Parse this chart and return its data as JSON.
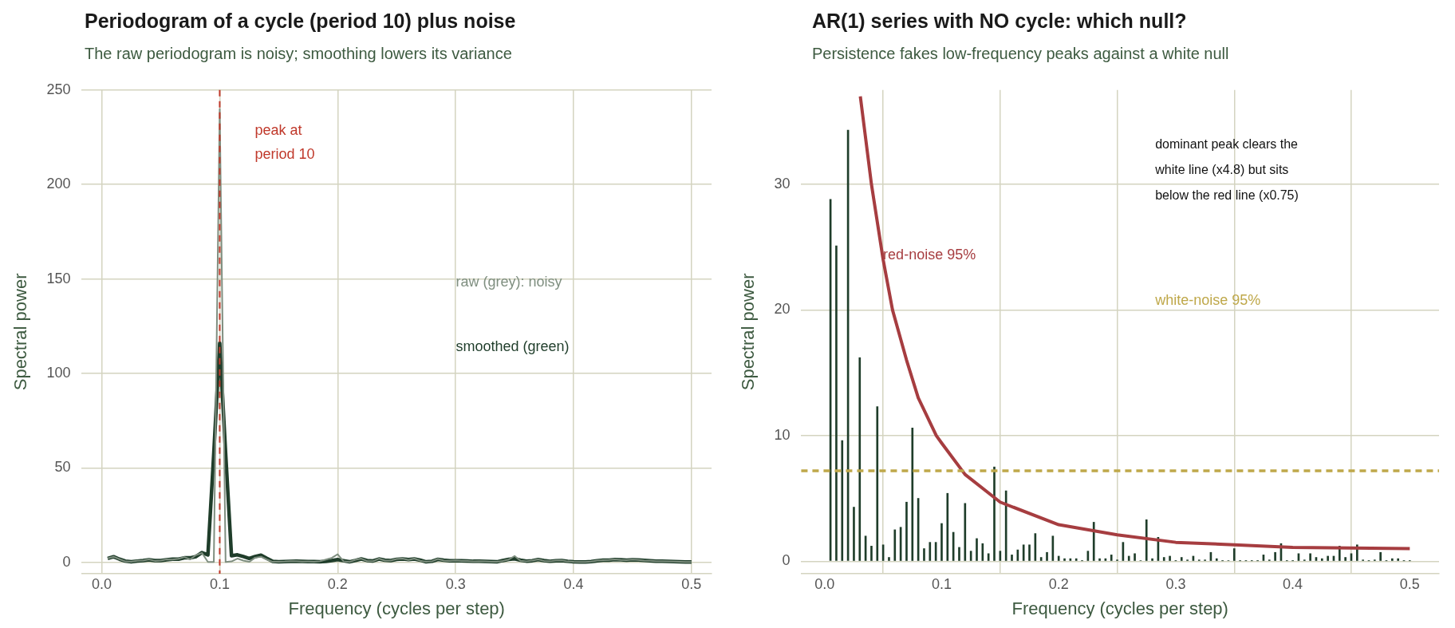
{
  "chart_data": [
    {
      "type": "line",
      "title": "Periodogram of a cycle (period 10) plus noise",
      "subtitle": "The raw periodogram is noisy; smoothing lowers its variance",
      "xlabel": "Frequency (cycles per step)",
      "ylabel": "Spectral power",
      "x": [
        0.005,
        0.01,
        0.015,
        0.02,
        0.025,
        0.03,
        0.035,
        0.04,
        0.045,
        0.05,
        0.055,
        0.06,
        0.065,
        0.07,
        0.075,
        0.08,
        0.085,
        0.09,
        0.095,
        0.1,
        0.105,
        0.11,
        0.115,
        0.12,
        0.125,
        0.13,
        0.135,
        0.14,
        0.145,
        0.15,
        0.155,
        0.16,
        0.165,
        0.17,
        0.175,
        0.18,
        0.185,
        0.19,
        0.195,
        0.2,
        0.205,
        0.21,
        0.215,
        0.22,
        0.225,
        0.23,
        0.235,
        0.24,
        0.245,
        0.25,
        0.255,
        0.26,
        0.265,
        0.27,
        0.275,
        0.28,
        0.285,
        0.29,
        0.295,
        0.3,
        0.305,
        0.31,
        0.315,
        0.32,
        0.325,
        0.33,
        0.335,
        0.34,
        0.345,
        0.35,
        0.355,
        0.36,
        0.365,
        0.37,
        0.375,
        0.38,
        0.385,
        0.39,
        0.395,
        0.4,
        0.405,
        0.41,
        0.415,
        0.42,
        0.425,
        0.43,
        0.435,
        0.44,
        0.445,
        0.45,
        0.455,
        0.46,
        0.465,
        0.47,
        0.475,
        0.48,
        0.485,
        0.49,
        0.495,
        0.5
      ],
      "series": [
        {
          "color": "#7f8f80",
          "values": [
            2.1,
            3.0,
            1.7,
            0.5,
            0.3,
            0.9,
            1.0,
            1.6,
            0.8,
            1.0,
            1.6,
            1.5,
            1.9,
            2.8,
            1.6,
            3.9,
            5.0,
            0.2,
            0.2,
            240,
            0.2,
            0.5,
            2.0,
            1.0,
            0.3,
            2.5,
            3.0,
            1.5,
            0.3,
            0.3,
            0.4,
            0.6,
            0.6,
            0.4,
            0.4,
            0.3,
            0.6,
            1.5,
            2.4,
            4.3,
            0.6,
            0.2,
            1.4,
            2.0,
            0.7,
            0.6,
            2.0,
            1.0,
            1.0,
            1.8,
            2.0,
            1.3,
            2.0,
            0.9,
            0.3,
            0.6,
            1.8,
            1.0,
            0.8,
            1.0,
            0.8,
            0.8,
            0.5,
            0.6,
            0.5,
            0.3,
            0.3,
            0.8,
            1.5,
            3.4,
            0.9,
            0.6,
            1.0,
            1.6,
            0.8,
            0.6,
            1.0,
            1.1,
            0.5,
            0.3,
            0.2,
            0.2,
            0.4,
            1.0,
            1.2,
            1.3,
            1.6,
            1.3,
            1.2,
            1.5,
            1.3,
            1.0,
            0.9,
            0.7,
            0.6,
            0.5,
            0.4,
            0.3,
            0.2,
            0.2
          ]
        },
        {
          "color": "#1f3d2a",
          "values": [
            2.1,
            3.0,
            1.7,
            0.7,
            0.3,
            0.7,
            1.0,
            1.4,
            1.0,
            1.0,
            1.4,
            1.7,
            1.7,
            2.4,
            2.4,
            3.1,
            5.2,
            4.0,
            58,
            116,
            58,
            3.5,
            4.0,
            3.1,
            2.1,
            3.1,
            3.8,
            2.1,
            0.5,
            0.3,
            0.4,
            0.5,
            0.6,
            0.5,
            0.4,
            0.4,
            0.3,
            0.5,
            1.0,
            1.5,
            0.9,
            0.3,
            1.0,
            1.8,
            1.0,
            0.8,
            1.8,
            1.2,
            1.0,
            1.6,
            1.8,
            1.5,
            1.8,
            1.2,
            0.3,
            0.6,
            1.6,
            1.2,
            0.9,
            0.9,
            0.9,
            0.8,
            0.6,
            0.6,
            0.5,
            0.4,
            0.3,
            1.0,
            1.6,
            1.9,
            1.2,
            0.7,
            0.9,
            1.5,
            1.0,
            0.6,
            0.9,
            1.0,
            0.6,
            0.3,
            0.2,
            0.2,
            0.4,
            0.9,
            1.2,
            1.2,
            1.5,
            1.4,
            1.2,
            1.4,
            1.3,
            1.1,
            0.9,
            0.7,
            0.6,
            0.5,
            0.4,
            0.3,
            0.2,
            0.2
          ]
        }
      ],
      "xlim": [
        -0.017,
        0.517
      ],
      "xticks": [
        {
          "value": 0,
          "label": "0.0"
        },
        0.1,
        0.2,
        0.3,
        0.4,
        0.5
      ],
      "ylim": [
        -6,
        250
      ],
      "yticks": [
        0,
        50,
        100,
        150,
        200,
        250
      ],
      "grid": true,
      "ref_lines": [
        {
          "axis": "x",
          "value": 0.1,
          "label": "peak at\nperiod 10",
          "color": "#c0392b",
          "line_style": "dashed"
        }
      ],
      "annotations": [
        "raw (grey): noisy",
        "smoothed (green)"
      ]
    },
    {
      "type": "bar",
      "title": "AR(1) series with NO cycle: which null?",
      "subtitle": "Persistence fakes low-frequency peaks against a white null",
      "xlabel": "Frequency (cycles per step)",
      "ylabel": "Spectral power",
      "series": [
        {
          "type": "bar",
          "color": "#1f3d2a",
          "x": [
            0.005,
            0.01,
            0.015,
            0.02,
            0.025,
            0.03,
            0.035,
            0.04,
            0.045,
            0.05,
            0.055,
            0.06,
            0.065,
            0.07,
            0.075,
            0.08,
            0.085,
            0.09,
            0.095,
            0.1,
            0.105,
            0.11,
            0.115,
            0.12,
            0.125,
            0.13,
            0.135,
            0.14,
            0.145,
            0.15,
            0.155,
            0.16,
            0.165,
            0.17,
            0.175,
            0.18,
            0.185,
            0.19,
            0.195,
            0.2,
            0.205,
            0.21,
            0.215,
            0.22,
            0.225,
            0.23,
            0.235,
            0.24,
            0.245,
            0.25,
            0.255,
            0.26,
            0.265,
            0.27,
            0.275,
            0.28,
            0.285,
            0.29,
            0.295,
            0.3,
            0.305,
            0.31,
            0.315,
            0.32,
            0.325,
            0.33,
            0.335,
            0.34,
            0.345,
            0.35,
            0.355,
            0.36,
            0.365,
            0.37,
            0.375,
            0.38,
            0.385,
            0.39,
            0.395,
            0.4,
            0.405,
            0.41,
            0.415,
            0.42,
            0.425,
            0.43,
            0.435,
            0.44,
            0.445,
            0.45,
            0.455,
            0.46,
            0.465,
            0.47,
            0.475,
            0.48,
            0.485,
            0.49,
            0.495,
            0.5
          ],
          "values": [
            28.8,
            25.1,
            9.6,
            34.3,
            4.3,
            16.2,
            2.0,
            1.2,
            12.3,
            1.3,
            0.3,
            2.5,
            2.7,
            4.7,
            10.6,
            5.0,
            1.0,
            1.5,
            1.5,
            3.0,
            5.4,
            2.3,
            1.1,
            4.6,
            0.8,
            1.8,
            1.4,
            0.6,
            7.5,
            0.8,
            5.6,
            0.5,
            0.9,
            1.3,
            1.3,
            2.2,
            0.3,
            0.7,
            2.0,
            0.4,
            0.2,
            0.2,
            0.2,
            0.03,
            0.8,
            3.1,
            0.2,
            0.2,
            0.5,
            0.1,
            1.5,
            0.4,
            0.6,
            0.05,
            3.3,
            0.2,
            1.9,
            0.3,
            0.4,
            0.03,
            0.3,
            0.1,
            0.4,
            0.1,
            0.1,
            0.7,
            0.2,
            0.03,
            0.05,
            1.0,
            0.03,
            0.03,
            0.03,
            0.03,
            0.5,
            0.1,
            0.7,
            1.4,
            0.03,
            0.03,
            0.6,
            0.1,
            0.6,
            0.3,
            0.2,
            0.4,
            0.4,
            1.2,
            0.3,
            0.6,
            1.3,
            0.1,
            0.03,
            0.1,
            0.7,
            0.03,
            0.2,
            0.2,
            0.03,
            0.03
          ]
        },
        {
          "type": "line",
          "color": "#a63d40",
          "x": [
            0.0305,
            0.04,
            0.05,
            0.058,
            0.07,
            0.08,
            0.0954,
            0.1,
            0.12,
            0.15,
            0.2,
            0.25,
            0.3,
            0.35,
            0.4,
            0.45,
            0.5
          ],
          "values": [
            37,
            30,
            24,
            20,
            16,
            13,
            10,
            9.4,
            6.9,
            4.7,
            2.9,
            2.1,
            1.5,
            1.3,
            1.1,
            1.05,
            1.0
          ]
        }
      ],
      "xlim": [
        -0.02,
        0.525
      ],
      "xticks": [
        {
          "value": 0,
          "label": "0.0"
        },
        0.1,
        0.2,
        0.3,
        0.4,
        0.5
      ],
      "ylim": [
        -1,
        37.5
      ],
      "yticks": [
        0,
        10,
        20,
        30
      ],
      "grid": true,
      "ref_lines": [
        {
          "axis": "y",
          "value": 7.2,
          "label": "white-noise 95%",
          "color": "#bfa84a",
          "line_style": "dashed"
        }
      ],
      "annotations": [
        {
          "text": "red-noise 95%",
          "x": 0.05,
          "y": 24
        },
        "dominant peak clears the\nwhite line (x4.8) but sits\nbelow the red line (x0.75)"
      ]
    }
  ]
}
